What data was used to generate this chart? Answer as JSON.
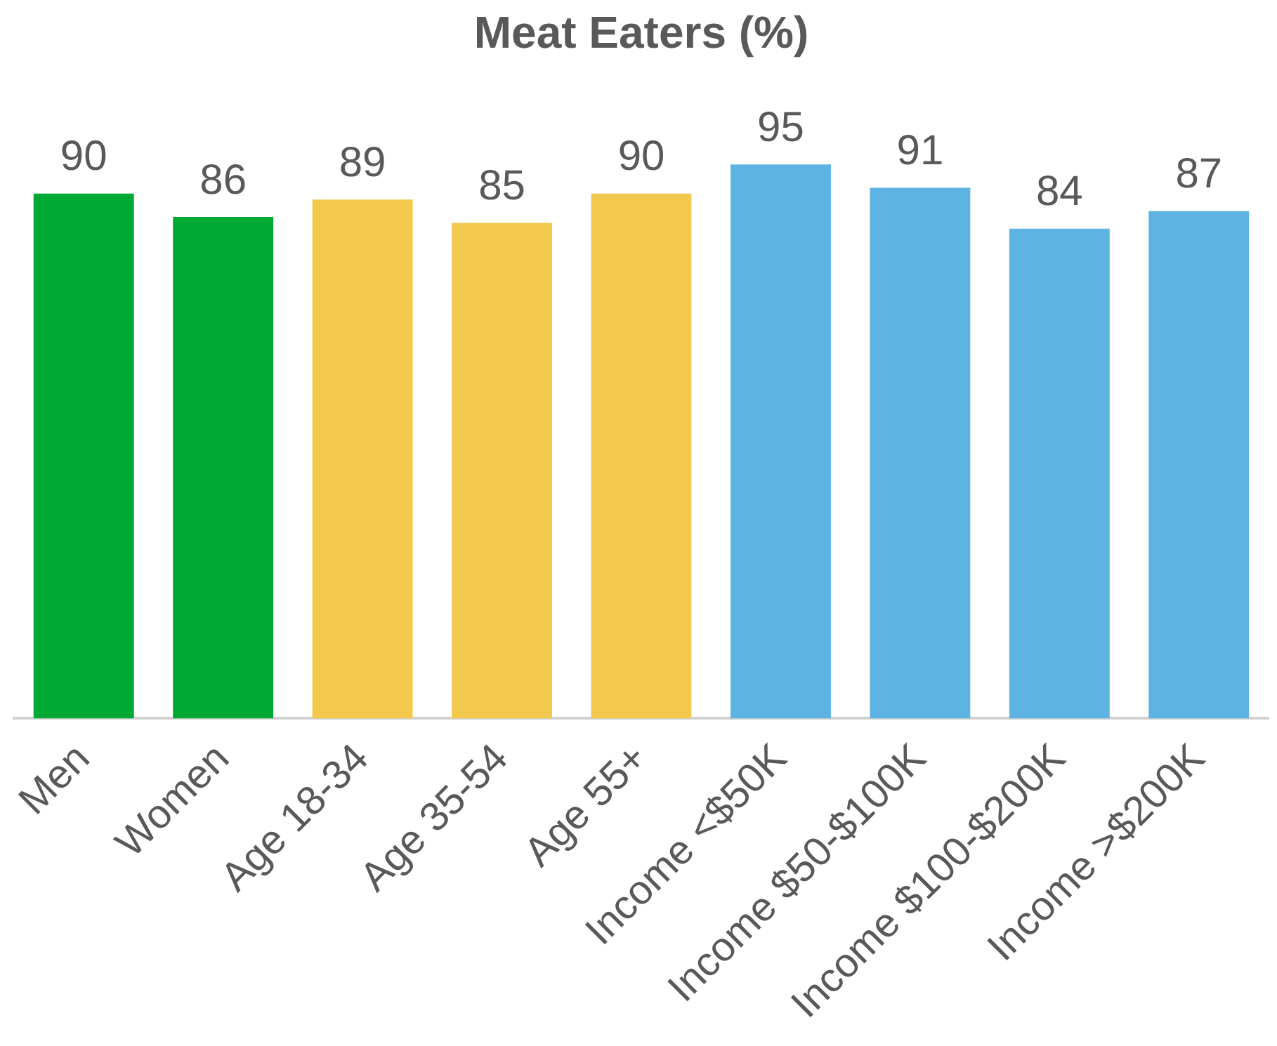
{
  "chart_data": {
    "type": "bar",
    "title": "Meat Eaters (%)",
    "categories": [
      "Men",
      "Women",
      "Age 18-34",
      "Age 35-54",
      "Age 55+",
      "Income <$50K",
      "Income $50-$100K",
      "Income $100-$200K",
      "Income >$200K"
    ],
    "values": [
      90,
      86,
      89,
      85,
      90,
      95,
      91,
      84,
      87
    ],
    "colors": [
      "#00a933",
      "#00a933",
      "#f2c94c",
      "#f2c94c",
      "#f2c94c",
      "#5db3e2",
      "#5db3e2",
      "#5db3e2",
      "#5db3e2"
    ],
    "data_labels": true
  }
}
